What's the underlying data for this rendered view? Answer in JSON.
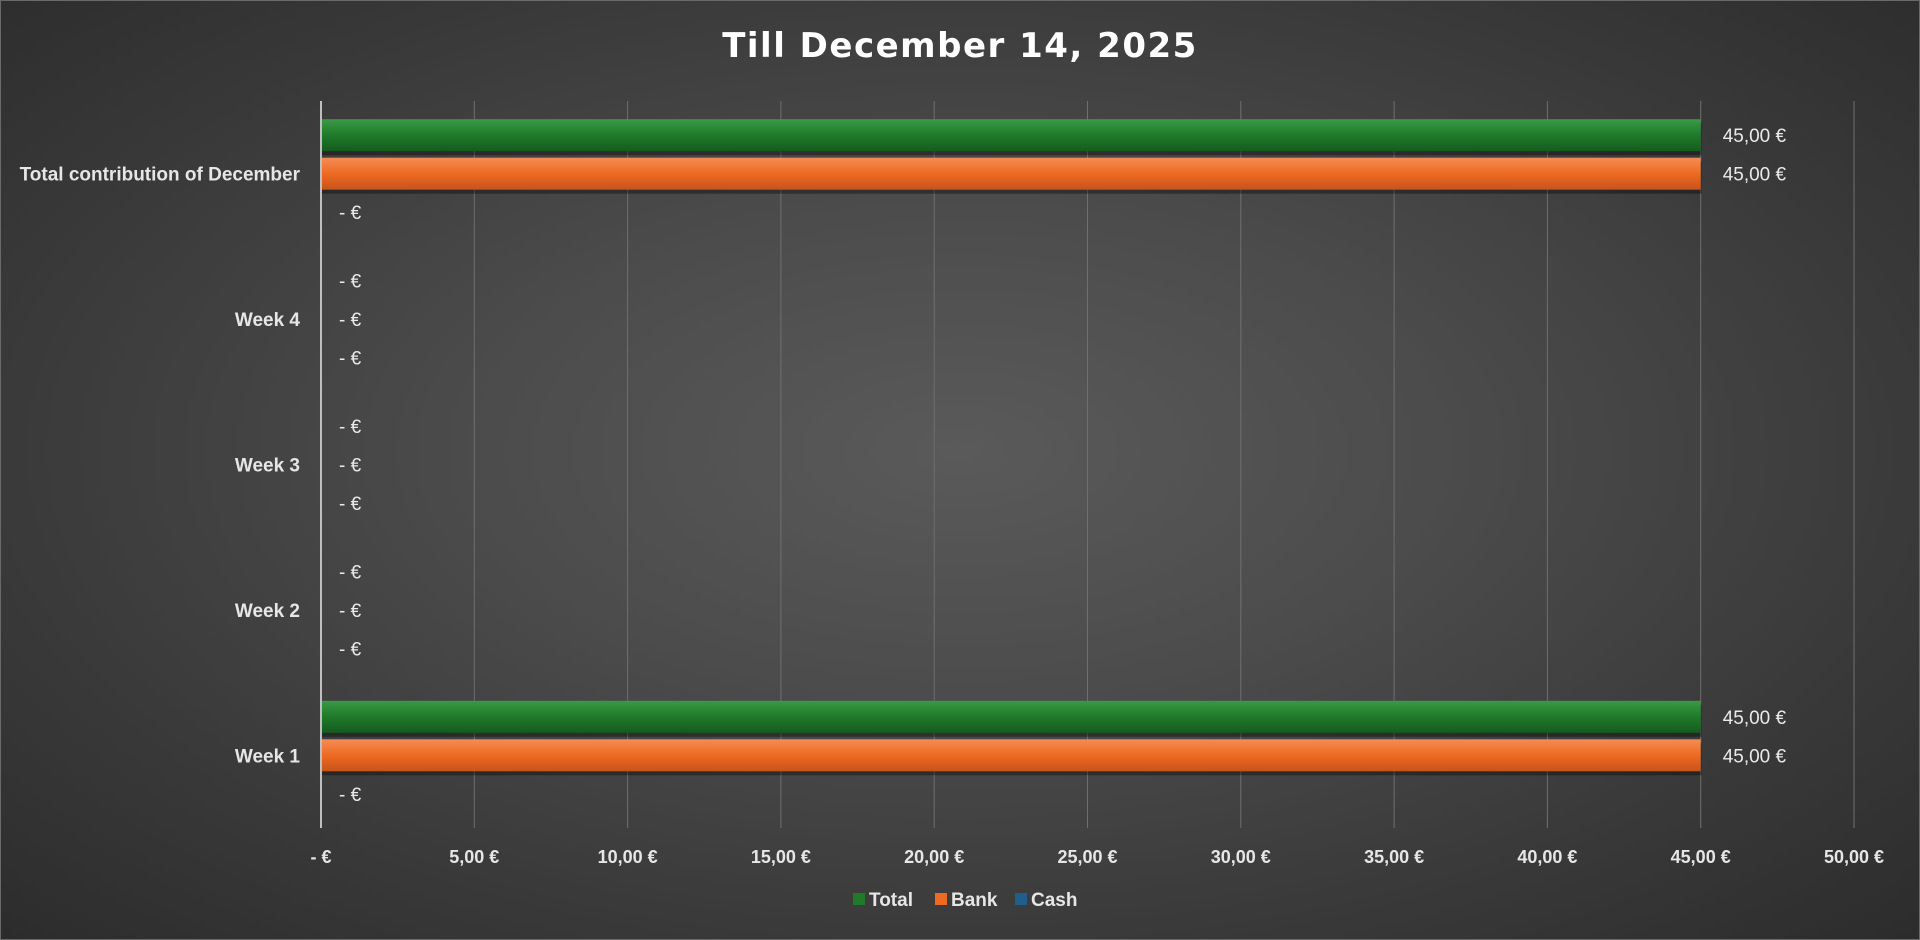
{
  "chart_data": {
    "type": "bar",
    "orientation": "horizontal",
    "title": "Till December 14, 2025",
    "categories": [
      "Week 1",
      "Week 2",
      "Week 3",
      "Week 4",
      "Total contribution of December"
    ],
    "series": [
      {
        "name": "Total",
        "values": [
          45,
          0,
          0,
          0,
          45
        ],
        "labels": [
          "45,00 €",
          "-  €",
          "-  €",
          "-  €",
          "45,00 €"
        ],
        "color": "#1f7a2a"
      },
      {
        "name": "Bank",
        "values": [
          45,
          0,
          0,
          0,
          45
        ],
        "labels": [
          "45,00 €",
          "-  €",
          "-  €",
          "-  €",
          "45,00 €"
        ],
        "color": "#ed6a22"
      },
      {
        "name": "Cash",
        "values": [
          0,
          0,
          0,
          0,
          0
        ],
        "labels": [
          "-  €",
          "-  €",
          "-  €",
          "-  €",
          "-  €"
        ],
        "color": "#1f5f8b"
      }
    ],
    "x_ticks": [
      "-  €",
      "5,00 €",
      "10,00 €",
      "15,00 €",
      "20,00 €",
      "25,00 €",
      "30,00 €",
      "35,00 €",
      "40,00 €",
      "45,00 €",
      "50,00 €"
    ],
    "xlim": [
      0,
      50
    ],
    "grid": true,
    "legend_position": "bottom"
  }
}
